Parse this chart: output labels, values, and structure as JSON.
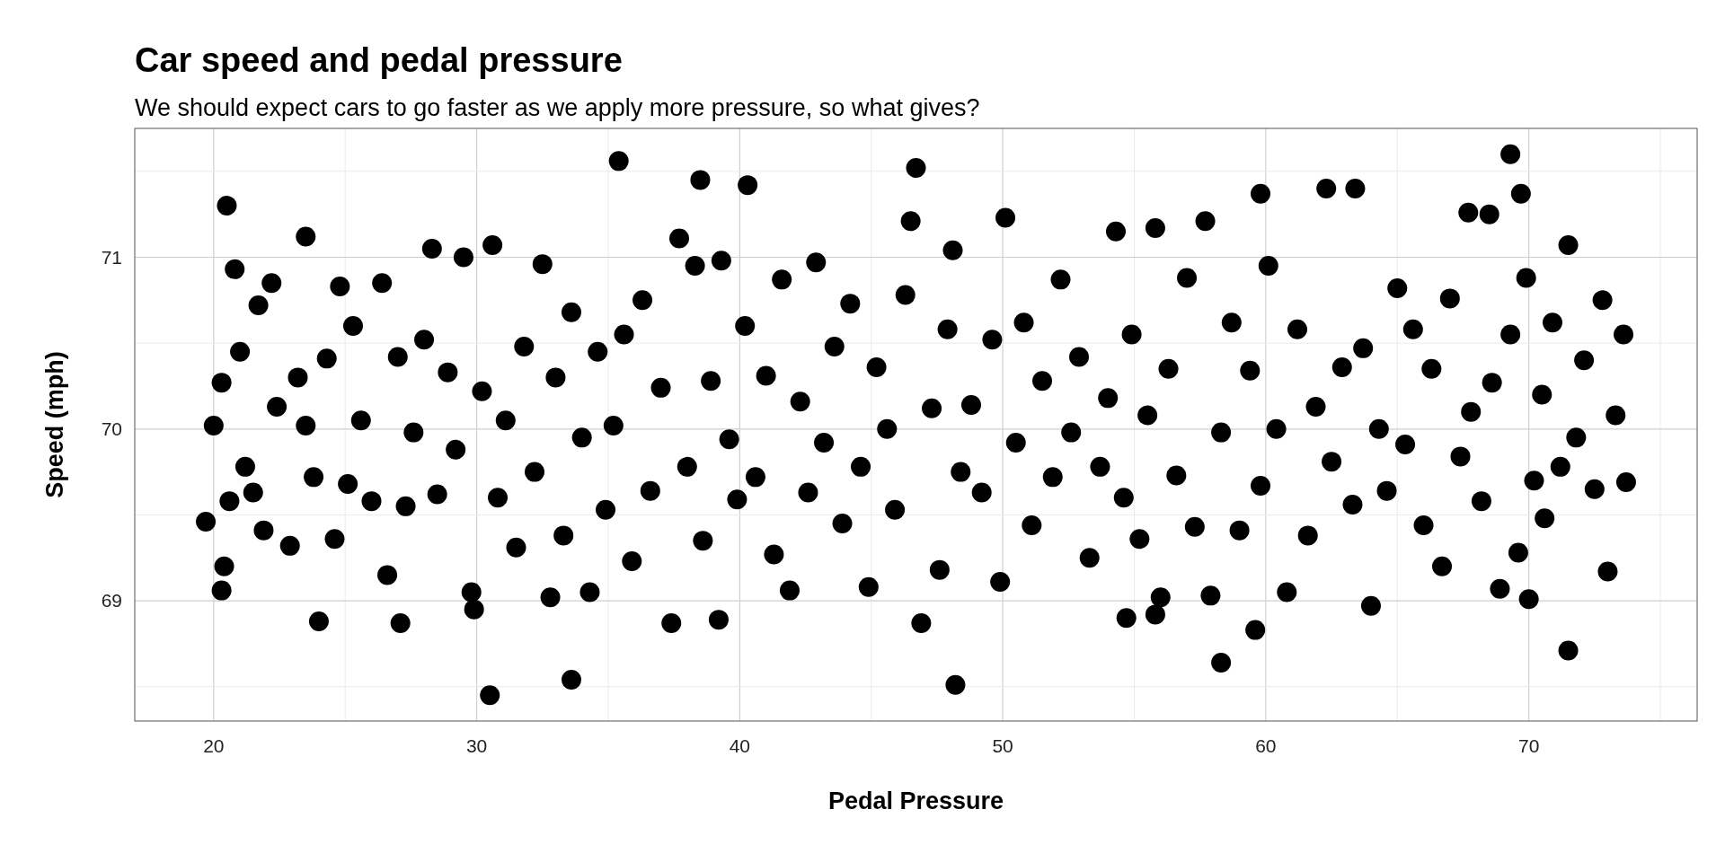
{
  "chart_data": {
    "type": "scatter",
    "title": "Car speed and pedal pressure",
    "subtitle": "We should expect cars to go faster as we apply more pressure, so what gives?",
    "xlabel": "Pedal Pressure",
    "ylabel": "Speed (mph)",
    "xlim": [
      17,
      76.4
    ],
    "ylim": [
      68.3,
      71.75
    ],
    "xticks": [
      20,
      {
        "value": 25,
        "label": null
      },
      30,
      {
        "value": 35,
        "label": null
      },
      40,
      {
        "value": 45,
        "label": null
      },
      50,
      {
        "value": 55,
        "label": null
      },
      60,
      {
        "value": 65,
        "label": null
      },
      70,
      {
        "value": 75,
        "label": null
      }
    ],
    "yticks": [
      {
        "value": 68.5,
        "label": null
      },
      69,
      {
        "value": 69.5,
        "label": null
      },
      70,
      {
        "value": 70.5,
        "label": null
      },
      71,
      {
        "value": 71.5,
        "label": null
      }
    ],
    "grid": true,
    "marker": "circle",
    "series": [
      {
        "color": "#000000",
        "x": [
          20.0,
          20.3,
          20.4,
          20.6,
          20.8,
          21.0,
          21.2,
          21.5,
          21.7,
          21.9,
          22.2,
          22.4,
          22.9,
          23.2,
          23.5,
          23.8,
          24.3,
          24.6,
          24.8,
          25.1,
          25.3,
          25.6,
          26.0,
          26.4,
          26.6,
          27.0,
          27.3,
          27.6,
          28.0,
          28.3,
          28.5,
          28.9,
          29.2,
          29.5,
          29.8,
          29.9,
          30.2,
          30.6,
          30.8,
          31.1,
          31.5,
          31.8,
          32.2,
          32.5,
          32.8,
          33.0,
          33.3,
          33.6,
          34.0,
          34.3,
          34.6,
          34.9,
          35.2,
          35.6,
          35.9,
          36.3,
          36.6,
          37.0,
          37.4,
          37.7,
          38.0,
          38.3,
          38.6,
          38.9,
          39.2,
          39.3,
          39.6,
          39.9,
          40.2,
          40.6,
          41.0,
          41.3,
          41.6,
          41.9,
          42.3,
          42.6,
          42.9,
          43.2,
          43.6,
          43.9,
          44.2,
          44.6,
          44.9,
          45.2,
          45.6,
          45.9,
          46.3,
          46.5,
          46.9,
          47.3,
          47.6,
          47.9,
          48.1,
          48.4,
          48.8,
          49.2,
          49.6,
          49.9,
          50.1,
          50.5,
          50.8,
          51.1,
          51.5,
          51.9,
          52.2,
          52.6,
          52.9,
          53.3,
          53.7,
          54.0,
          54.3,
          54.6,
          54.9,
          55.2,
          55.5,
          55.8,
          56.0,
          56.3,
          56.6,
          57.0,
          57.3,
          57.7,
          57.9,
          58.3,
          58.7,
          59.0,
          59.4,
          59.8,
          60.1,
          60.4,
          60.8,
          61.2,
          61.6,
          61.9,
          62.3,
          62.5,
          62.9,
          63.3,
          63.7,
          64.0,
          64.3,
          64.6,
          65.0,
          65.3,
          65.6,
          66.0,
          66.3,
          66.7,
          67.0,
          67.4,
          67.8,
          68.2,
          68.6,
          68.9,
          69.3,
          69.6,
          69.9,
          70.2,
          70.5,
          70.6,
          70.9,
          71.2,
          71.5,
          71.8,
          72.1,
          72.5,
          72.8,
          73.0,
          73.3,
          73.6,
          73.7,
          30.5,
          33.6,
          48.2,
          58.3,
          71.5,
          35.4,
          69.3,
          38.5,
          40.3,
          46.7,
          59.8,
          63.4,
          69.7,
          68.5,
          67.7,
          20.5,
          23.5,
          19.7,
          20.3,
          27.1,
          24.0,
          54.7,
          55.8,
          59.6,
          70.0
        ],
        "values": [
          70.02,
          70.27,
          69.2,
          69.58,
          70.93,
          70.45,
          69.78,
          69.63,
          70.72,
          69.41,
          70.85,
          70.13,
          69.32,
          70.3,
          70.02,
          69.72,
          70.41,
          69.36,
          70.83,
          69.68,
          70.6,
          70.05,
          69.58,
          70.85,
          69.15,
          70.42,
          69.55,
          69.98,
          70.52,
          71.05,
          69.62,
          70.33,
          69.88,
          71.0,
          69.05,
          68.95,
          70.22,
          71.07,
          69.6,
          70.05,
          69.31,
          70.48,
          69.75,
          70.96,
          69.02,
          70.3,
          69.38,
          70.68,
          69.95,
          69.05,
          70.45,
          69.53,
          70.02,
          70.55,
          69.23,
          70.75,
          69.64,
          70.24,
          68.87,
          71.11,
          69.78,
          70.95,
          69.35,
          70.28,
          68.89,
          70.98,
          69.94,
          69.59,
          70.6,
          69.72,
          70.31,
          69.27,
          70.87,
          69.06,
          70.16,
          69.63,
          70.97,
          69.92,
          70.48,
          69.45,
          70.73,
          69.78,
          69.08,
          70.36,
          70.0,
          69.53,
          70.78,
          71.21,
          68.87,
          70.12,
          69.18,
          70.58,
          71.04,
          69.75,
          70.14,
          69.63,
          70.52,
          69.11,
          71.23,
          69.92,
          70.62,
          69.44,
          70.28,
          69.72,
          70.87,
          69.98,
          70.42,
          69.25,
          69.78,
          70.18,
          71.15,
          69.6,
          70.55,
          69.36,
          70.08,
          71.17,
          69.02,
          70.35,
          69.73,
          70.88,
          69.43,
          71.21,
          69.03,
          69.98,
          70.62,
          69.41,
          70.34,
          69.67,
          70.95,
          70.0,
          69.05,
          70.58,
          69.38,
          70.13,
          71.4,
          69.81,
          70.36,
          69.56,
          70.47,
          68.97,
          70.0,
          69.64,
          70.82,
          69.91,
          70.58,
          69.44,
          70.35,
          69.2,
          70.76,
          69.84,
          70.1,
          69.58,
          70.27,
          69.07,
          70.55,
          69.28,
          70.88,
          69.7,
          70.2,
          69.48,
          70.62,
          69.78,
          71.07,
          69.95,
          70.4,
          69.65,
          70.75,
          69.17,
          70.08,
          70.55,
          69.69,
          68.45,
          68.54,
          68.51,
          68.64,
          68.71,
          71.56,
          71.6,
          71.45,
          71.42,
          71.52,
          71.37,
          71.4,
          71.37,
          71.25,
          71.26,
          71.3,
          71.12,
          69.46,
          69.06,
          68.87,
          68.88,
          68.9,
          68.92,
          68.83,
          69.01
        ]
      }
    ]
  }
}
